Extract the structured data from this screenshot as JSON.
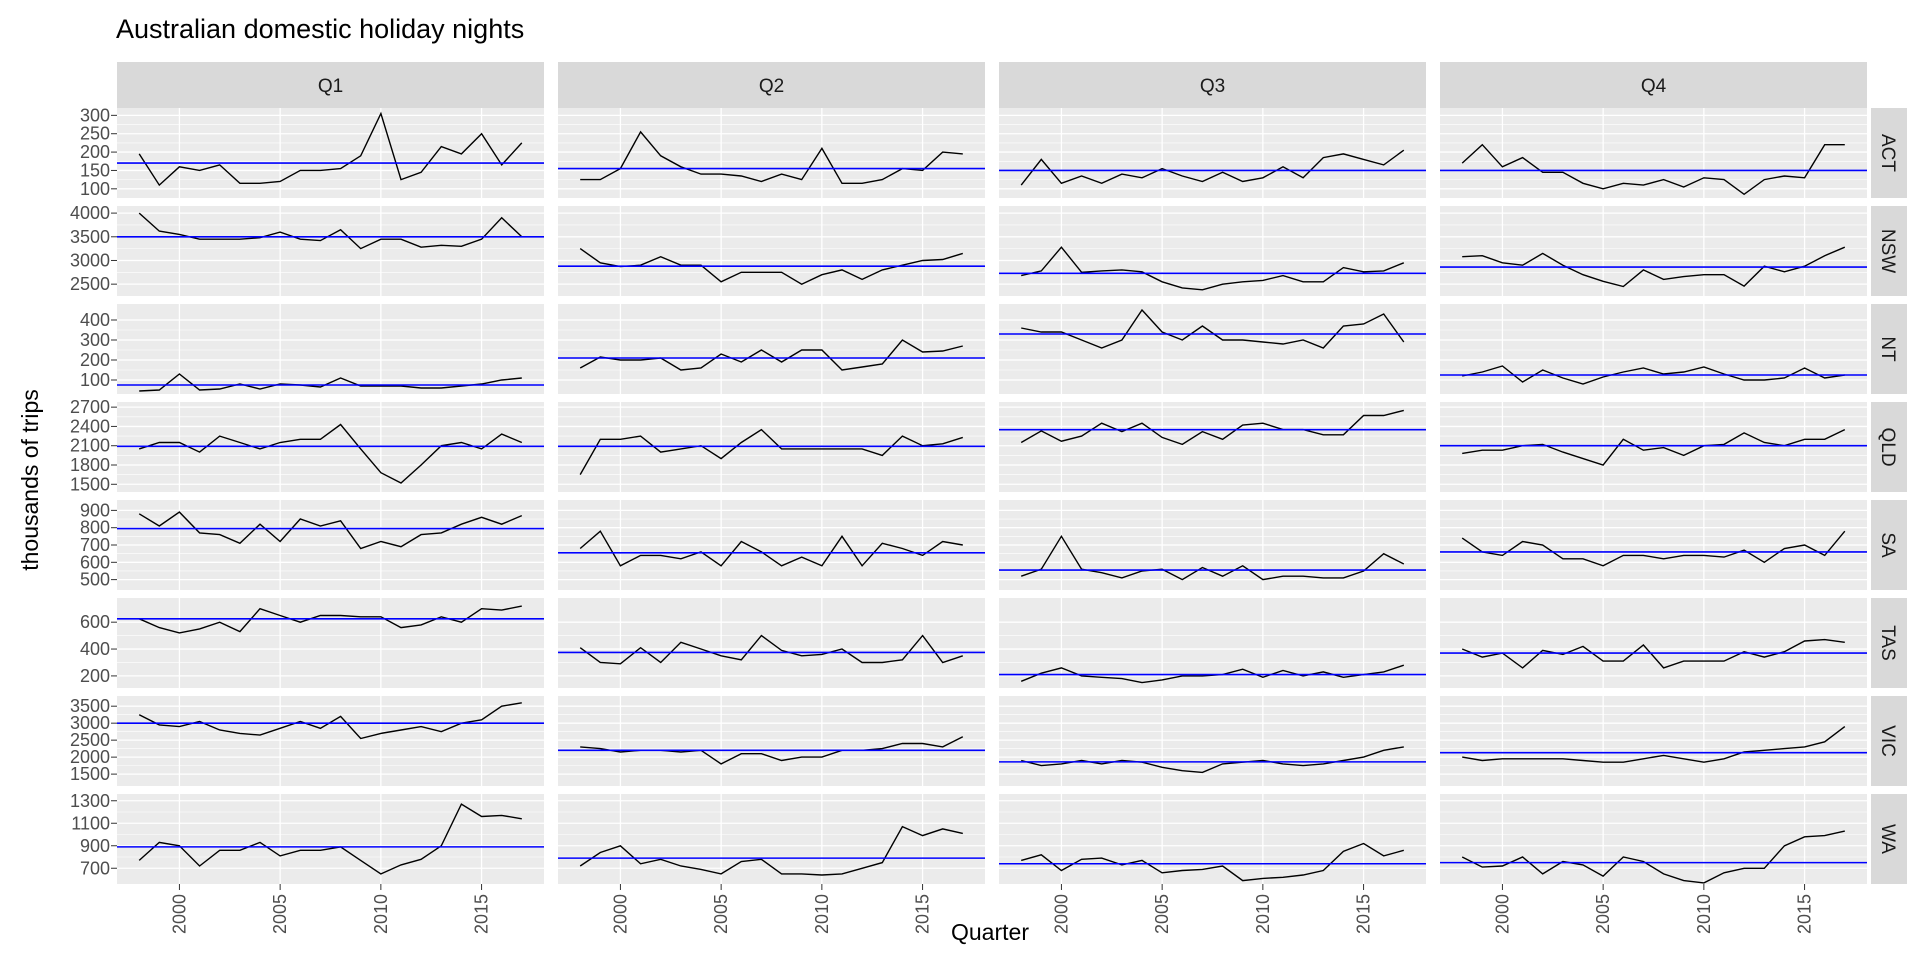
{
  "chart_data": {
    "type": "line",
    "title": "Australian domestic holiday nights",
    "xlabel": "Quarter",
    "ylabel": "thousands of trips",
    "facet_columns": [
      "Q1",
      "Q2",
      "Q3",
      "Q4"
    ],
    "facet_rows": [
      "ACT",
      "NSW",
      "NT",
      "QLD",
      "SA",
      "TAS",
      "VIC",
      "WA"
    ],
    "x": [
      1998,
      1999,
      2000,
      2001,
      2002,
      2003,
      2004,
      2005,
      2006,
      2007,
      2008,
      2009,
      2010,
      2011,
      2012,
      2013,
      2014,
      2015,
      2016,
      2017
    ],
    "xlim": [
      1996.9,
      2018.1
    ],
    "x_ticks": [
      2000,
      2005,
      2010,
      2015
    ],
    "grid": true,
    "colors": {
      "series": "#000000",
      "mean_line": "#0000ff",
      "panel_bg": "#ebebeb",
      "strip_bg": "#d9d9d9",
      "grid": "#ffffff"
    },
    "rows": [
      {
        "name": "ACT",
        "ylim": [
          75,
          320
        ],
        "y_ticks": [
          100,
          150,
          200,
          250,
          300
        ],
        "mean": [
          170,
          155,
          150,
          150
        ],
        "series": {
          "Q1": [
            195,
            110,
            160,
            150,
            165,
            115,
            115,
            120,
            150,
            150,
            155,
            190,
            305,
            125,
            145,
            215,
            195,
            250,
            165,
            225
          ],
          "Q2": [
            125,
            125,
            155,
            255,
            190,
            160,
            140,
            140,
            135,
            120,
            140,
            125,
            210,
            115,
            115,
            125,
            155,
            150,
            200,
            195
          ],
          "Q3": [
            110,
            180,
            115,
            135,
            115,
            140,
            130,
            155,
            135,
            120,
            145,
            120,
            130,
            160,
            130,
            185,
            195,
            180,
            165,
            205
          ],
          "Q4": [
            170,
            220,
            160,
            185,
            145,
            145,
            115,
            100,
            115,
            110,
            125,
            105,
            130,
            125,
            85,
            125,
            135,
            130,
            220,
            220
          ]
        }
      },
      {
        "name": "NSW",
        "ylim": [
          2250,
          4150
        ],
        "y_ticks": [
          2500,
          3000,
          3500,
          4000
        ],
        "mean": [
          3500,
          2880,
          2730,
          2860
        ],
        "series": {
          "Q1": [
            4000,
            3620,
            3550,
            3450,
            3450,
            3450,
            3480,
            3600,
            3450,
            3420,
            3650,
            3250,
            3450,
            3450,
            3280,
            3320,
            3300,
            3450,
            3900,
            3500
          ],
          "Q2": [
            3250,
            2950,
            2870,
            2900,
            3080,
            2900,
            2900,
            2550,
            2750,
            2750,
            2750,
            2500,
            2700,
            2800,
            2600,
            2800,
            2900,
            3000,
            3020,
            3150
          ],
          "Q3": [
            2680,
            2780,
            3280,
            2750,
            2780,
            2800,
            2760,
            2550,
            2420,
            2380,
            2500,
            2550,
            2580,
            2680,
            2550,
            2550,
            2850,
            2760,
            2780,
            2950
          ],
          "Q4": [
            3080,
            3100,
            2950,
            2900,
            3150,
            2900,
            2700,
            2560,
            2450,
            2800,
            2600,
            2660,
            2700,
            2700,
            2460,
            2880,
            2760,
            2880,
            3100,
            3280
          ]
        }
      },
      {
        "name": "NT",
        "ylim": [
          30,
          480
        ],
        "y_ticks": [
          100,
          200,
          300,
          400
        ],
        "mean": [
          75,
          210,
          330,
          125
        ],
        "series": {
          "Q1": [
            45,
            50,
            130,
            50,
            55,
            80,
            55,
            80,
            75,
            65,
            110,
            70,
            70,
            70,
            60,
            60,
            70,
            80,
            100,
            110
          ],
          "Q2": [
            160,
            215,
            200,
            200,
            210,
            150,
            160,
            230,
            190,
            250,
            190,
            250,
            250,
            150,
            165,
            180,
            300,
            240,
            245,
            270
          ],
          "Q3": [
            360,
            340,
            340,
            300,
            260,
            300,
            450,
            340,
            300,
            370,
            300,
            300,
            290,
            280,
            300,
            260,
            370,
            380,
            430,
            290
          ],
          "Q4": [
            120,
            140,
            170,
            90,
            150,
            110,
            80,
            115,
            140,
            160,
            130,
            140,
            165,
            130,
            100,
            100,
            110,
            160,
            110,
            125
          ]
        }
      },
      {
        "name": "QLD",
        "ylim": [
          1380,
          2780
        ],
        "y_ticks": [
          1500,
          1800,
          2100,
          2400,
          2700
        ],
        "mean": [
          2090,
          2090,
          2350,
          2100
        ],
        "series": {
          "Q1": [
            2050,
            2150,
            2150,
            2000,
            2250,
            2150,
            2050,
            2150,
            2200,
            2200,
            2430,
            2050,
            1680,
            1520,
            1800,
            2100,
            2150,
            2050,
            2280,
            2150
          ],
          "Q2": [
            1650,
            2200,
            2200,
            2250,
            2000,
            2050,
            2100,
            1900,
            2150,
            2350,
            2050,
            2050,
            2050,
            2050,
            2050,
            1950,
            2250,
            2100,
            2130,
            2230
          ],
          "Q3": [
            2150,
            2330,
            2170,
            2250,
            2450,
            2320,
            2450,
            2230,
            2120,
            2320,
            2200,
            2420,
            2450,
            2350,
            2350,
            2270,
            2270,
            2570,
            2570,
            2650
          ],
          "Q4": [
            1980,
            2030,
            2030,
            2100,
            2120,
            2000,
            1900,
            1800,
            2200,
            2030,
            2070,
            1950,
            2100,
            2120,
            2300,
            2150,
            2100,
            2200,
            2200,
            2350
          ]
        }
      },
      {
        "name": "SA",
        "ylim": [
          440,
          960
        ],
        "y_ticks": [
          500,
          600,
          700,
          800,
          900
        ],
        "mean": [
          795,
          655,
          555,
          660
        ],
        "series": {
          "Q1": [
            880,
            810,
            890,
            770,
            760,
            710,
            820,
            720,
            850,
            810,
            840,
            680,
            720,
            690,
            760,
            770,
            820,
            860,
            820,
            870
          ],
          "Q2": [
            680,
            780,
            580,
            640,
            640,
            620,
            660,
            580,
            720,
            660,
            580,
            630,
            580,
            750,
            580,
            710,
            680,
            640,
            720,
            700
          ],
          "Q3": [
            520,
            560,
            750,
            560,
            540,
            510,
            550,
            560,
            500,
            570,
            520,
            580,
            500,
            520,
            520,
            510,
            510,
            550,
            650,
            590
          ],
          "Q4": [
            740,
            660,
            640,
            720,
            700,
            620,
            620,
            580,
            640,
            640,
            620,
            640,
            640,
            630,
            670,
            600,
            680,
            700,
            640,
            780
          ]
        }
      },
      {
        "name": "TAS",
        "ylim": [
          110,
          780
        ],
        "y_ticks": [
          200,
          400,
          600
        ],
        "mean": [
          625,
          375,
          210,
          370
        ],
        "series": {
          "Q1": [
            625,
            560,
            520,
            550,
            600,
            530,
            700,
            650,
            600,
            650,
            650,
            640,
            640,
            560,
            580,
            640,
            600,
            700,
            690,
            720
          ],
          "Q2": [
            410,
            300,
            290,
            410,
            300,
            450,
            400,
            350,
            320,
            500,
            390,
            350,
            360,
            400,
            300,
            300,
            320,
            500,
            300,
            350
          ],
          "Q3": [
            160,
            220,
            260,
            200,
            190,
            180,
            150,
            170,
            200,
            200,
            210,
            250,
            190,
            240,
            200,
            230,
            190,
            210,
            230,
            280
          ],
          "Q4": [
            400,
            340,
            370,
            260,
            390,
            360,
            420,
            310,
            310,
            430,
            260,
            310,
            310,
            310,
            380,
            340,
            380,
            460,
            470,
            450
          ]
        }
      },
      {
        "name": "VIC",
        "ylim": [
          1150,
          3800
        ],
        "y_ticks": [
          1500,
          2000,
          2500,
          3000,
          3500
        ],
        "mean": [
          3000,
          2200,
          1860,
          2130
        ],
        "series": {
          "Q1": [
            3250,
            2950,
            2900,
            3050,
            2800,
            2700,
            2650,
            2850,
            3050,
            2850,
            3200,
            2550,
            2700,
            2800,
            2900,
            2750,
            3000,
            3100,
            3500,
            3600
          ],
          "Q2": [
            2300,
            2250,
            2150,
            2200,
            2200,
            2150,
            2200,
            1800,
            2100,
            2100,
            1900,
            2000,
            2000,
            2200,
            2200,
            2250,
            2400,
            2400,
            2300,
            2600
          ],
          "Q3": [
            1900,
            1750,
            1800,
            1900,
            1800,
            1900,
            1850,
            1700,
            1600,
            1550,
            1800,
            1850,
            1900,
            1800,
            1750,
            1800,
            1900,
            2000,
            2200,
            2300
          ],
          "Q4": [
            2000,
            1900,
            1950,
            1950,
            1950,
            1950,
            1900,
            1850,
            1850,
            1950,
            2050,
            1950,
            1850,
            1950,
            2150,
            2200,
            2250,
            2300,
            2450,
            2900
          ]
        }
      },
      {
        "name": "WA",
        "ylim": [
          560,
          1360
        ],
        "y_ticks": [
          700,
          900,
          1100,
          1300
        ],
        "mean": [
          890,
          790,
          740,
          750
        ],
        "series": {
          "Q1": [
            770,
            930,
            900,
            720,
            860,
            860,
            930,
            810,
            860,
            860,
            890,
            770,
            650,
            730,
            780,
            900,
            1270,
            1160,
            1170,
            1140
          ],
          "Q2": [
            720,
            840,
            900,
            740,
            780,
            720,
            690,
            650,
            760,
            780,
            650,
            650,
            640,
            650,
            700,
            750,
            1070,
            990,
            1050,
            1010
          ],
          "Q3": [
            770,
            820,
            680,
            780,
            790,
            730,
            770,
            660,
            680,
            690,
            720,
            590,
            610,
            620,
            640,
            680,
            850,
            920,
            810,
            860
          ],
          "Q4": [
            800,
            710,
            720,
            800,
            650,
            760,
            730,
            630,
            800,
            760,
            650,
            590,
            570,
            660,
            700,
            700,
            900,
            980,
            990,
            1030
          ]
        }
      }
    ]
  }
}
